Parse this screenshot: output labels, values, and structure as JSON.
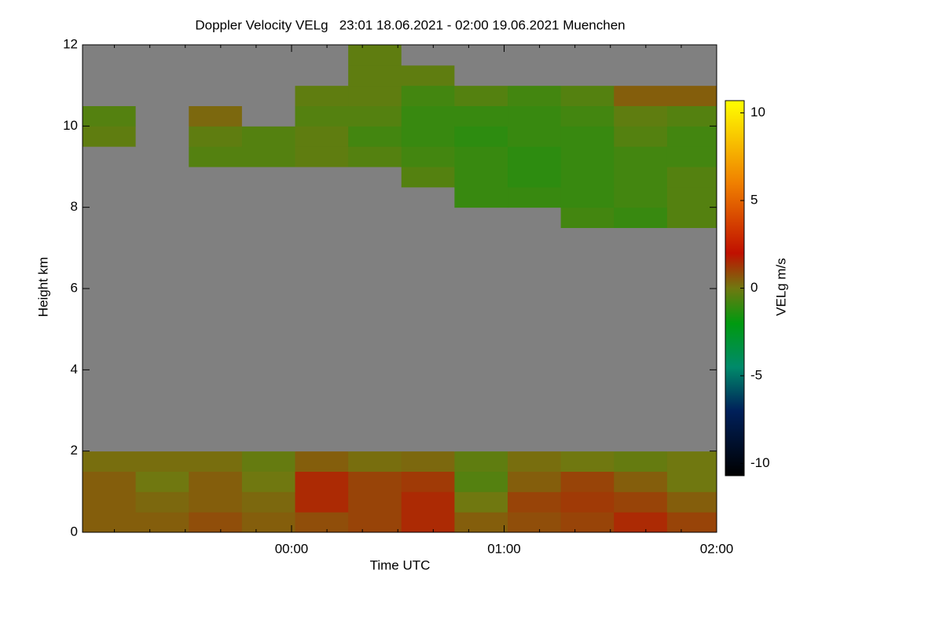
{
  "chart_data": {
    "type": "heatmap",
    "title": "Doppler Velocity VELg   23:01 18.06.2021 - 02:00 19.06.2021 Muenchen",
    "x_label": "Time UTC",
    "y_label": "Height km",
    "colorbar_label": "VELg m/s",
    "xlim": [
      -59,
      120
    ],
    "xticks": [
      {
        "value": 0,
        "label": "00:00"
      },
      {
        "value": 60,
        "label": "01:00"
      },
      {
        "value": 120,
        "label": "02:00"
      }
    ],
    "ylim": [
      0,
      12
    ],
    "yticks": [
      0,
      2,
      4,
      6,
      8,
      10,
      12
    ],
    "clim": [
      -10.7,
      10.7
    ],
    "cticks": [
      -10,
      -5,
      0,
      5,
      10
    ],
    "colormap": [
      {
        "value": -10.7,
        "color": "#000000"
      },
      {
        "value": -7,
        "color": "#00205a"
      },
      {
        "value": -4.5,
        "color": "#008a6a"
      },
      {
        "value": -2,
        "color": "#009a10"
      },
      {
        "value": 0,
        "color": "#707810"
      },
      {
        "value": 2,
        "color": "#c01000"
      },
      {
        "value": 6,
        "color": "#f08000"
      },
      {
        "value": 10.7,
        "color": "#ffff00"
      }
    ],
    "missing_color": "#808080",
    "xbins": [
      -59,
      -44,
      -29,
      -14,
      1,
      16,
      31,
      46,
      61,
      76,
      91,
      106,
      120
    ],
    "ybins": [
      0,
      0.5,
      1,
      1.5,
      2,
      2.5,
      3,
      3.5,
      4,
      4.5,
      5,
      5.5,
      6,
      6.5,
      7,
      7.5,
      8,
      8.5,
      9,
      9.5,
      10,
      10.5,
      11,
      11.5,
      12
    ],
    "z": [
      [
        0.5,
        0.5,
        0.8,
        0.5,
        0.8,
        1,
        1.5,
        0.5,
        0.8,
        1,
        1.5,
        1
      ],
      [
        0.5,
        0.3,
        0.5,
        0.3,
        1.5,
        1,
        1.5,
        0,
        1,
        1.2,
        1,
        0.5
      ],
      [
        0.5,
        0,
        0.5,
        0,
        1.5,
        1,
        1.2,
        -0.5,
        0.5,
        1,
        0.5,
        0
      ],
      [
        0.2,
        0.2,
        0.2,
        -0.2,
        0.5,
        0.2,
        0.3,
        -0.3,
        0.2,
        0,
        -0.2,
        0
      ],
      [
        null,
        null,
        null,
        null,
        null,
        null,
        null,
        null,
        null,
        null,
        null,
        null
      ],
      [
        null,
        null,
        null,
        null,
        null,
        null,
        null,
        null,
        null,
        null,
        null,
        null
      ],
      [
        null,
        null,
        null,
        null,
        null,
        null,
        null,
        null,
        null,
        null,
        null,
        null
      ],
      [
        null,
        null,
        null,
        null,
        null,
        null,
        null,
        null,
        null,
        null,
        null,
        null
      ],
      [
        null,
        null,
        null,
        null,
        null,
        null,
        null,
        null,
        null,
        null,
        null,
        null
      ],
      [
        null,
        null,
        null,
        null,
        null,
        null,
        null,
        null,
        null,
        null,
        null,
        null
      ],
      [
        null,
        null,
        null,
        null,
        null,
        null,
        null,
        null,
        null,
        null,
        null,
        null
      ],
      [
        null,
        null,
        null,
        null,
        null,
        null,
        null,
        null,
        null,
        null,
        null,
        null
      ],
      [
        null,
        null,
        null,
        null,
        null,
        null,
        null,
        null,
        null,
        null,
        null,
        null
      ],
      [
        null,
        null,
        null,
        null,
        null,
        null,
        null,
        null,
        null,
        null,
        null,
        null
      ],
      [
        null,
        null,
        null,
        null,
        null,
        null,
        null,
        null,
        null,
        null,
        null,
        null
      ],
      [
        null,
        null,
        null,
        null,
        null,
        null,
        null,
        null,
        null,
        -0.8,
        -1,
        -0.5
      ],
      [
        null,
        null,
        null,
        null,
        null,
        null,
        null,
        -1,
        -1,
        -1,
        -0.8,
        -0.5
      ],
      [
        null,
        null,
        null,
        null,
        null,
        null,
        -0.5,
        -1,
        -1.2,
        -1,
        -0.8,
        -0.5
      ],
      [
        null,
        null,
        -0.5,
        -0.5,
        -0.3,
        -0.5,
        -0.8,
        -1,
        -1.2,
        -1,
        -0.8,
        -0.8
      ],
      [
        -0.3,
        null,
        -0.3,
        -0.5,
        -0.3,
        -0.8,
        -1,
        -1.2,
        -1,
        -1,
        -0.5,
        -0.8
      ],
      [
        -0.5,
        null,
        0.3,
        null,
        -0.5,
        -0.5,
        -1,
        -1,
        -1,
        -0.8,
        -0.3,
        -0.5
      ],
      [
        null,
        null,
        null,
        null,
        -0.3,
        -0.3,
        -0.8,
        -0.5,
        -0.8,
        -0.5,
        0.5,
        0.5
      ],
      [
        null,
        null,
        null,
        null,
        null,
        -0.3,
        -0.3,
        null,
        null,
        null,
        null,
        null
      ],
      [
        null,
        null,
        null,
        null,
        null,
        -0.3,
        null,
        null,
        null,
        null,
        null,
        null
      ]
    ]
  }
}
